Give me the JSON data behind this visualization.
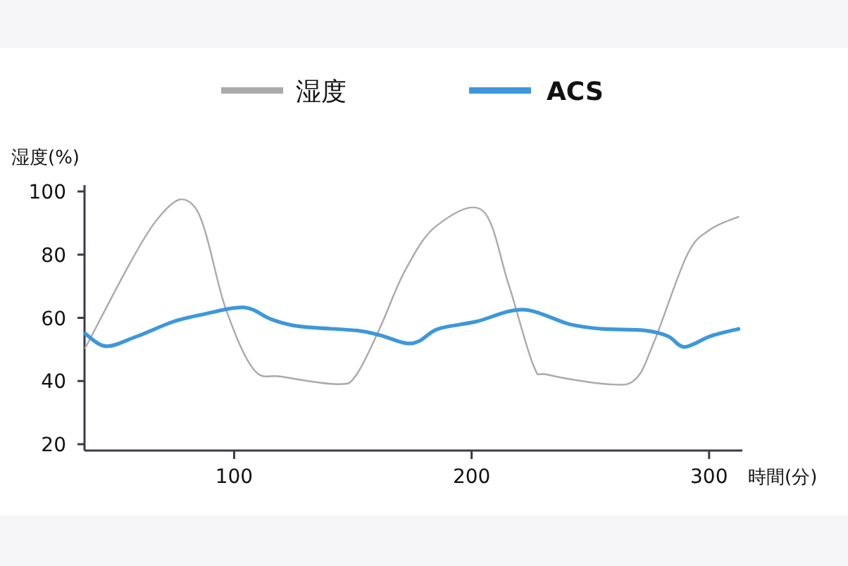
{
  "chart_data": {
    "type": "line",
    "ylabel": "湿度(%)",
    "xlabel": "時間(分)",
    "xlim": [
      37,
      314
    ],
    "ylim": [
      18,
      102
    ],
    "xticks": [
      100,
      200,
      300
    ],
    "yticks": [
      20,
      40,
      60,
      80,
      100
    ],
    "grid": false,
    "legend": "top",
    "marker": "none",
    "line_style": "solid",
    "series": [
      {
        "name": "湿度",
        "color": "#aaaaaa",
        "x": [
          37.3,
          66.9,
          83.5,
          96.4,
          108.3,
          120,
          143.8,
          151.5,
          161.5,
          172,
          185,
          204.5,
          215.4,
          226,
          232,
          257.5,
          269,
          277,
          290.8,
          300.6,
          312.4
        ],
        "values": [
          50.5,
          90.5,
          95,
          63,
          43.6,
          41.4,
          39,
          42,
          57,
          75,
          89,
          94,
          71,
          45,
          42,
          39,
          40.6,
          52.7,
          80,
          88,
          92
        ]
      },
      {
        "name": "ACS",
        "color": "#3d97db",
        "x": [
          37.3,
          46,
          58.6,
          74.4,
          86.3,
          104,
          115.8,
          127.6,
          151.4,
          161.5,
          172,
          178,
          185.9,
          201.8,
          221.5,
          241.2,
          255,
          272.8,
          282.7,
          289.6,
          300.6,
          312.4
        ],
        "values": [
          55,
          51,
          54,
          58.8,
          61,
          63.3,
          59.5,
          57.3,
          56,
          54.5,
          52,
          52.7,
          56.5,
          58.8,
          62.6,
          58,
          56.5,
          56,
          54.2,
          50.8,
          54.2,
          56.5
        ]
      }
    ]
  }
}
